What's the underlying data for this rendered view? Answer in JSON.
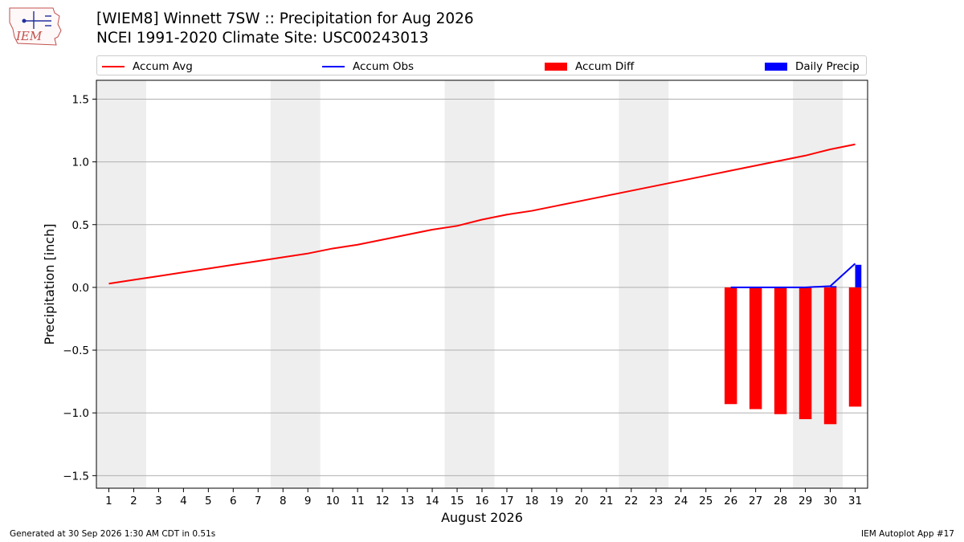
{
  "header": {
    "logo_text": "IEM",
    "title_line1": "[WIEM8] Winnett 7SW :: Precipitation for Aug 2026",
    "title_line2": "NCEI 1991-2020 Climate Site: USC00243013"
  },
  "legend": {
    "placement": "top",
    "items": [
      {
        "label": "Accum Avg",
        "kind": "line",
        "color": "#ff0000"
      },
      {
        "label": "Accum Obs",
        "kind": "line",
        "color": "#0000ff"
      },
      {
        "label": "Accum Diff",
        "kind": "box",
        "color": "#ff0000"
      },
      {
        "label": "Daily Precip",
        "kind": "box",
        "color": "#0000ff"
      }
    ]
  },
  "chart_data": {
    "type": "line",
    "xlabel": "August 2026",
    "ylabel": "Precipitation [inch]",
    "xlim": [
      0.5,
      31.5
    ],
    "ylim": [
      -1.6,
      1.65
    ],
    "x_ticks": [
      1,
      2,
      3,
      4,
      5,
      6,
      7,
      8,
      9,
      10,
      11,
      12,
      13,
      14,
      15,
      16,
      17,
      18,
      19,
      20,
      21,
      22,
      23,
      24,
      25,
      26,
      27,
      28,
      29,
      30,
      31
    ],
    "y_ticks": [
      -1.5,
      -1.0,
      -0.5,
      0.0,
      0.5,
      1.0,
      1.5
    ],
    "y_tick_labels": [
      "−1.5",
      "−1.0",
      "−0.5",
      "0.0",
      "0.5",
      "1.0",
      "1.5"
    ],
    "grid": "horizontal",
    "weekend_shading": [
      [
        1,
        2
      ],
      [
        8,
        9
      ],
      [
        15,
        16
      ],
      [
        22,
        23
      ],
      [
        29,
        30
      ]
    ],
    "weekend_color": "#eeeeee",
    "series": [
      {
        "name": "Accum Avg",
        "kind": "line",
        "color": "#ff0000",
        "x": [
          1,
          2,
          3,
          4,
          5,
          6,
          7,
          8,
          9,
          10,
          11,
          12,
          13,
          14,
          15,
          16,
          17,
          18,
          19,
          20,
          21,
          22,
          23,
          24,
          25,
          26,
          27,
          28,
          29,
          30,
          31
        ],
        "values": [
          0.03,
          0.06,
          0.09,
          0.12,
          0.15,
          0.18,
          0.21,
          0.24,
          0.27,
          0.31,
          0.34,
          0.38,
          0.42,
          0.46,
          0.49,
          0.54,
          0.58,
          0.61,
          0.65,
          0.69,
          0.73,
          0.77,
          0.81,
          0.85,
          0.89,
          0.93,
          0.97,
          1.01,
          1.05,
          1.1,
          1.14
        ]
      },
      {
        "name": "Accum Obs",
        "kind": "line",
        "color": "#0000ff",
        "x": [
          26,
          27,
          28,
          29,
          30,
          31
        ],
        "values": [
          0.0,
          0.0,
          0.0,
          0.0,
          0.01,
          0.19
        ]
      },
      {
        "name": "Accum Diff",
        "kind": "bar",
        "color": "#ff0000",
        "x": [
          26,
          27,
          28,
          29,
          30,
          31
        ],
        "values": [
          -0.93,
          -0.97,
          -1.01,
          -1.05,
          -1.09,
          -0.95
        ]
      },
      {
        "name": "Daily Precip",
        "kind": "bar",
        "color": "#0000ff",
        "x": [
          30,
          31
        ],
        "values": [
          0.01,
          0.18
        ]
      }
    ]
  },
  "footer": {
    "left": "Generated at 30 Sep 2026 1:30 AM CDT in 0.51s",
    "right": "IEM Autoplot App #17"
  }
}
